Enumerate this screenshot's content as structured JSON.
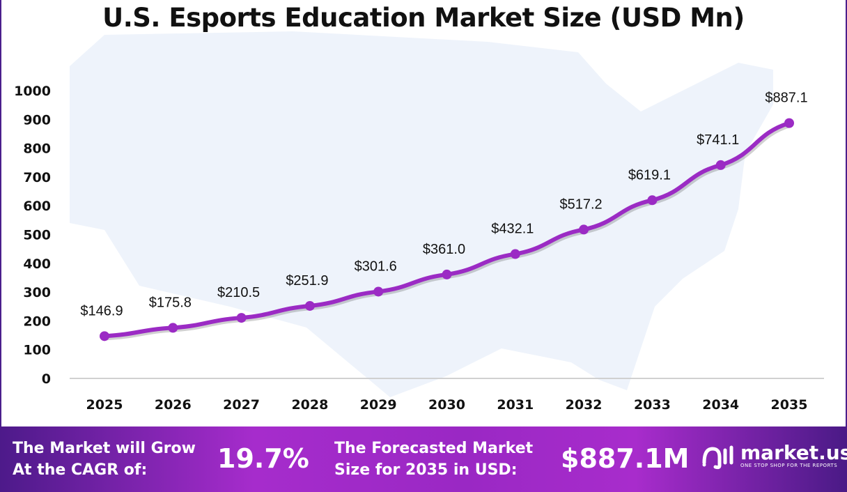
{
  "title": "U.S. Esports Education Market Size (USD Mn)",
  "chart_data": {
    "type": "line",
    "title": "U.S. Esports Education Market Size (USD Mn)",
    "categories": [
      "2025",
      "2026",
      "2027",
      "2028",
      "2029",
      "2030",
      "2031",
      "2032",
      "2033",
      "2034",
      "2035"
    ],
    "values": [
      146.9,
      175.8,
      210.5,
      251.9,
      301.6,
      361.0,
      432.1,
      517.2,
      619.1,
      741.1,
      887.1
    ],
    "data_labels": [
      "$146.9",
      "$175.8",
      "$210.5",
      "$251.9",
      "$301.6",
      "$361.0",
      "$432.1",
      "$517.2",
      "$619.1",
      "$741.1",
      "$887.1"
    ],
    "ylim": [
      0,
      1000
    ],
    "yticks": [
      "0",
      "100",
      "200",
      "300",
      "400",
      "500",
      "600",
      "700",
      "800",
      "900",
      "1000"
    ],
    "grid": false,
    "line_color": "#9b2bc4"
  },
  "banner": {
    "cagr_label": [
      "The Market will Grow",
      "At the CAGR of:"
    ],
    "cagr_value": "19.7%",
    "forecast_label": [
      "The Forecasted Market",
      "Size for 2035 in USD:"
    ],
    "forecast_value": "$887.1M",
    "logo_name": "market.us",
    "logo_tagline": "ONE STOP SHOP FOR THE REPORTS"
  }
}
